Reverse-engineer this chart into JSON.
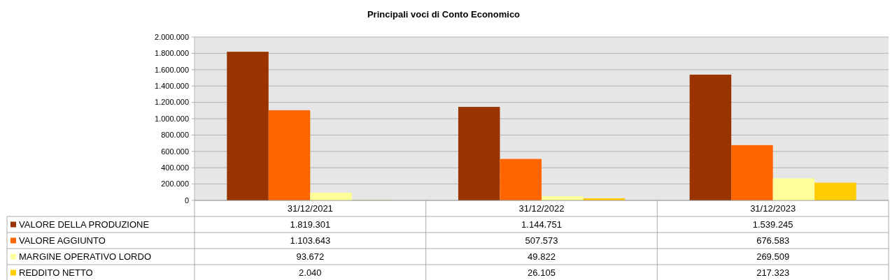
{
  "chart_data": {
    "type": "bar",
    "title": "Principali voci di Conto Economico",
    "categories": [
      "31/12/2021",
      "31/12/2022",
      "31/12/2023"
    ],
    "series": [
      {
        "name": "VALORE DELLA PRODUZIONE",
        "color": "#993300",
        "values": [
          1819301,
          1144751,
          1539245
        ],
        "value_labels": [
          "1.819.301",
          "1.144.751",
          "1.539.245"
        ]
      },
      {
        "name": "VALORE AGGIUNTO",
        "color": "#ff6600",
        "values": [
          1103643,
          507573,
          676583
        ],
        "value_labels": [
          "1.103.643",
          "507.573",
          "676.583"
        ]
      },
      {
        "name": "MARGINE OPERATIVO LORDO",
        "color": "#ffff99",
        "values": [
          93672,
          49822,
          269509
        ],
        "value_labels": [
          "93.672",
          "49.822",
          "269.509"
        ]
      },
      {
        "name": "REDDITO NETTO",
        "color": "#ffcc00",
        "values": [
          2040,
          26105,
          217323
        ],
        "value_labels": [
          "2.040",
          "26.105",
          "217.323"
        ]
      }
    ],
    "ylim": [
      0,
      2000000
    ],
    "yticks": [
      {
        "value": 0,
        "label": "0"
      },
      {
        "value": 200000,
        "label": "200.000"
      },
      {
        "value": 400000,
        "label": "400.000"
      },
      {
        "value": 600000,
        "label": "600.000"
      },
      {
        "value": 800000,
        "label": "800.000"
      },
      {
        "value": 1000000,
        "label": "1.000.000"
      },
      {
        "value": 1200000,
        "label": "1.200.000"
      },
      {
        "value": 1400000,
        "label": "1.400.000"
      },
      {
        "value": 1600000,
        "label": "1.600.000"
      },
      {
        "value": 1800000,
        "label": "1.800.000"
      },
      {
        "value": 2000000,
        "label": "2.000.000"
      }
    ],
    "grid": "y",
    "legend": "left"
  }
}
